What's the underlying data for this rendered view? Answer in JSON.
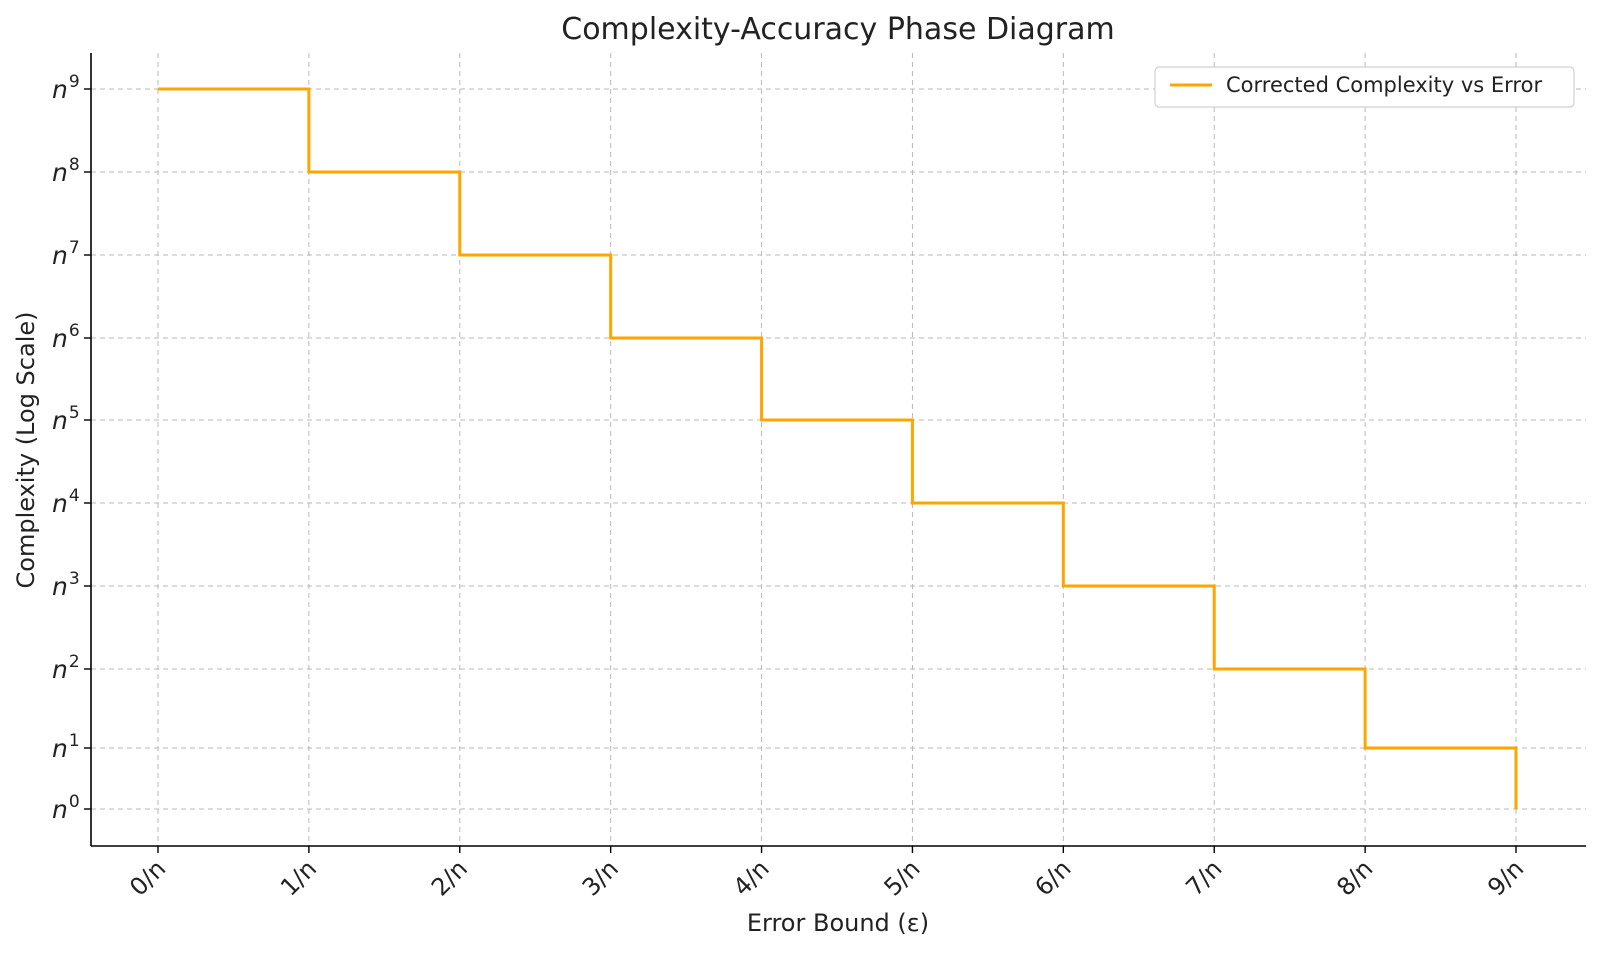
{
  "chart_data": {
    "type": "line",
    "title": "Complexity-Accuracy Phase Diagram",
    "xlabel": "Error Bound (ε)",
    "ylabel": "Complexity (Log Scale)",
    "x": [
      0,
      1,
      2,
      3,
      4,
      5,
      6,
      7,
      8,
      9
    ],
    "x_tick_labels": [
      "0/n",
      "1/n",
      "2/n",
      "3/n",
      "4/n",
      "5/n",
      "6/n",
      "7/n",
      "8/n",
      "9/n"
    ],
    "y_ticks": [
      {
        "base": "n",
        "exp": "0"
      },
      {
        "base": "n",
        "exp": "1"
      },
      {
        "base": "n",
        "exp": "2"
      },
      {
        "base": "n",
        "exp": "3"
      },
      {
        "base": "n",
        "exp": "4"
      },
      {
        "base": "n",
        "exp": "5"
      },
      {
        "base": "n",
        "exp": "6"
      },
      {
        "base": "n",
        "exp": "7"
      },
      {
        "base": "n",
        "exp": "8"
      },
      {
        "base": "n",
        "exp": "9"
      }
    ],
    "y_scale": "log",
    "step": "post",
    "series": [
      {
        "name": "Corrected Complexity vs Error",
        "color": "#FFA500",
        "exponents": [
          9,
          8,
          7,
          6,
          5,
          4,
          3,
          2,
          1,
          0
        ]
      }
    ],
    "legend": "top-right",
    "grid": true
  }
}
